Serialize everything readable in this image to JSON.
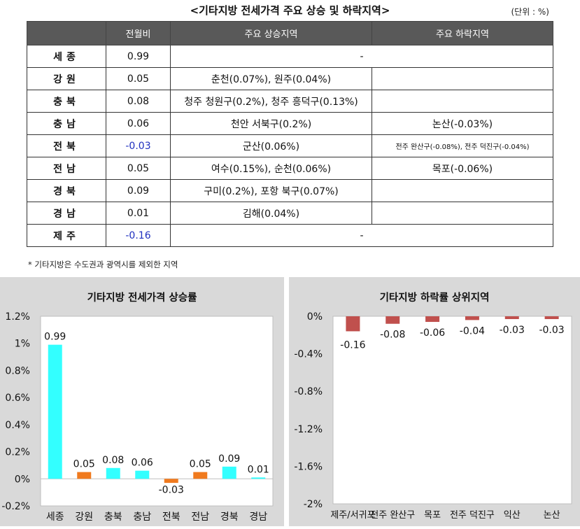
{
  "page_title": "<기타지방 전세가격 주요 상승 및 하락지역>",
  "unit": "(단위 : %)",
  "table": {
    "headers": [
      "",
      "전월비",
      "주요 상승지역",
      "주요 하락지역"
    ],
    "rows": [
      {
        "region": "세종",
        "mom": "0.99",
        "rise": "-",
        "fall": "",
        "merged": true,
        "neg": false
      },
      {
        "region": "강원",
        "mom": "0.05",
        "rise": "춘천(0.07%), 원주(0.04%)",
        "fall": "",
        "merged": false,
        "neg": false
      },
      {
        "region": "충북",
        "mom": "0.08",
        "rise": "청주 청원구(0.2%), 청주 흥덕구(0.13%)",
        "fall": "",
        "merged": false,
        "neg": false
      },
      {
        "region": "충남",
        "mom": "0.06",
        "rise": "천안 서북구(0.2%)",
        "fall": "논산(-0.03%)",
        "merged": false,
        "neg": false
      },
      {
        "region": "전북",
        "mom": "-0.03",
        "rise": "군산(0.06%)",
        "fall": "전주 완산구(-0.08%), 전주 덕진구(-0.04%)",
        "merged": false,
        "neg": true
      },
      {
        "region": "전남",
        "mom": "0.05",
        "rise": "여수(0.15%), 순천(0.06%)",
        "fall": "목포(-0.06%)",
        "merged": false,
        "neg": false
      },
      {
        "region": "경북",
        "mom": "0.09",
        "rise": "구미(0.2%), 포항 북구(0.07%)",
        "fall": "",
        "merged": false,
        "neg": false
      },
      {
        "region": "경남",
        "mom": "0.01",
        "rise": "김해(0.04%)",
        "fall": "",
        "merged": false,
        "neg": false
      },
      {
        "region": "제주",
        "mom": "-0.16",
        "rise": "-",
        "fall": "",
        "merged": true,
        "neg": true
      }
    ]
  },
  "footnote": "* 기타지방은 수도권과 광역시를 제외한 지역",
  "chart_data": [
    {
      "type": "bar",
      "title": "기타지방 전세가격 상승률",
      "categories": [
        "세종",
        "강원",
        "충북",
        "충남",
        "전북",
        "전남",
        "경북",
        "경남"
      ],
      "values": [
        0.99,
        0.05,
        0.08,
        0.06,
        -0.03,
        0.05,
        0.09,
        0.01
      ],
      "data_labels": [
        "0.99",
        "0.05",
        "0.08",
        "0.06",
        "-0.03",
        "0.05",
        "0.09",
        "0.01"
      ],
      "colors": [
        "#33ffff",
        "#f07a1e",
        "#33ffff",
        "#33ffff",
        "#f07a1e",
        "#f07a1e",
        "#33ffff",
        "#33ffff"
      ],
      "ylim": [
        -0.2,
        1.2
      ],
      "yticks": [
        -0.2,
        0,
        0.2,
        0.4,
        0.6,
        0.8,
        1.0,
        1.2
      ],
      "ytick_labels": [
        "-0.2%",
        "0%",
        "0.2%",
        "0.4%",
        "0.6%",
        "0.8%",
        "1%",
        "1.2%"
      ],
      "grid": false
    },
    {
      "type": "bar",
      "title": "기타지방 하락률 상위지역",
      "categories": [
        "제주/서귀포",
        "전주 완산구",
        "목포",
        "전주 덕진구",
        "익산",
        "논산"
      ],
      "values": [
        -0.16,
        -0.08,
        -0.06,
        -0.04,
        -0.03,
        -0.03
      ],
      "data_labels": [
        "-0.16",
        "-0.08",
        "-0.06",
        "-0.04",
        "-0.03",
        "-0.03"
      ],
      "color": "#c0504d",
      "ylim": [
        -2,
        0
      ],
      "yticks": [
        0,
        -0.4,
        -0.8,
        -1.2,
        -1.6,
        -2
      ],
      "ytick_labels": [
        "0%",
        "-0.4%",
        "-0.8%",
        "-1.2%",
        "-1.6%",
        "-2%"
      ],
      "grid": false
    }
  ]
}
